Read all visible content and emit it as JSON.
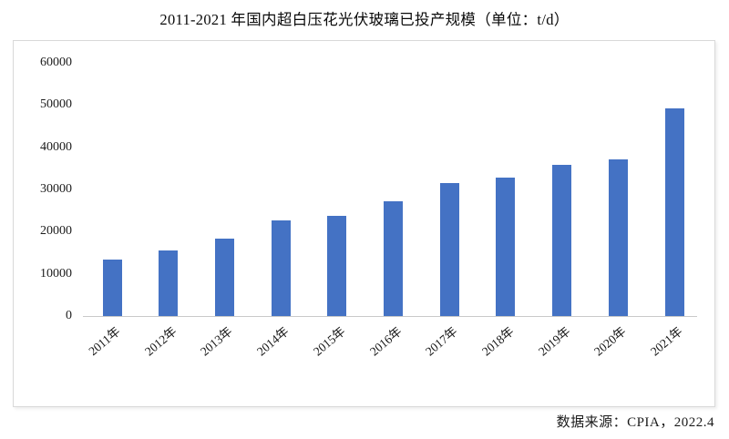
{
  "title": "2011-2021 年国内超白压花光伏玻璃已投产规模（单位：t/d）",
  "source_note": "数据来源：CPIA，2022.4",
  "colors": {
    "bar": "#4472c4",
    "frame_border": "#d9d9d9",
    "axis_line": "#c9c9c9",
    "text": "#111111"
  },
  "chart_data": {
    "type": "bar",
    "title": "2011-2021 年国内超白压花光伏玻璃已投产规模（单位：t/d）",
    "unit": "t/d",
    "categories": [
      "2011年",
      "2012年",
      "2013年",
      "2014年",
      "2015年",
      "2016年",
      "2017年",
      "2018年",
      "2019年",
      "2020年",
      "2021年"
    ],
    "values": [
      13400,
      15500,
      18300,
      22600,
      23700,
      27200,
      31600,
      32900,
      35900,
      37200,
      49200
    ],
    "xlabel": "",
    "ylabel": "",
    "ylim": [
      0,
      60000
    ],
    "yticks": [
      0,
      10000,
      20000,
      30000,
      40000,
      50000,
      60000
    ],
    "grid": false,
    "legend": false,
    "bar_color": "#4472c4",
    "source": "数据来源：CPIA，2022.4"
  }
}
